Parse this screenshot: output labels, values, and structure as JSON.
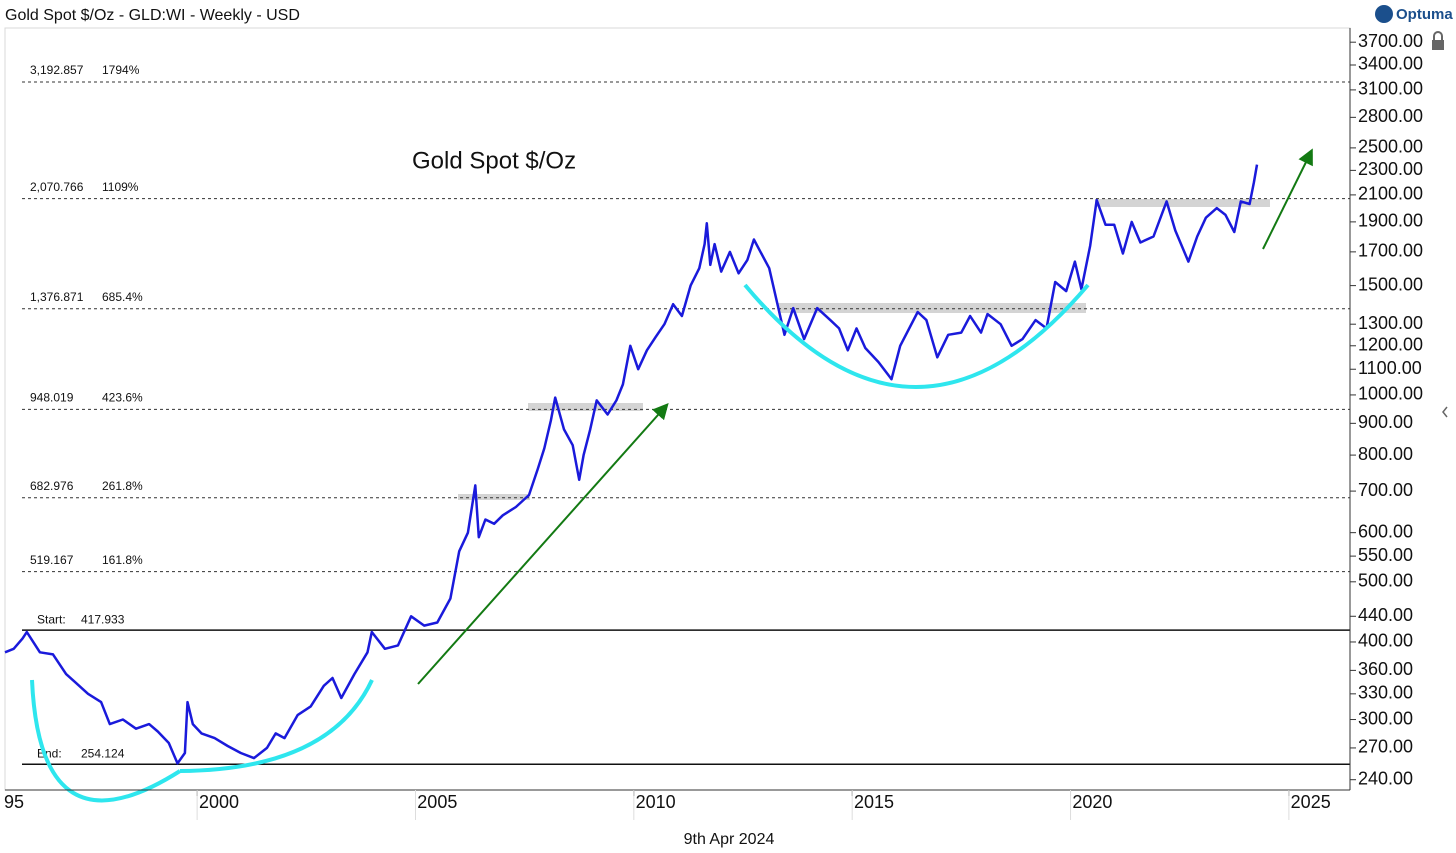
{
  "chart_data": {
    "type": "line",
    "title": "Gold Spot $/Oz - GLD:WI - Weekly - USD",
    "annotation": "Gold Spot $/Oz",
    "logo": "Optuma",
    "date_label": "9th Apr 2024",
    "log_scale": true,
    "xlim": [
      1995.6,
      2026.4
    ],
    "xticks": [
      {
        "value": 1995,
        "label": "95"
      },
      2000,
      2005,
      2010,
      2015,
      2020,
      2025
    ],
    "ylim": [
      231,
      3900
    ],
    "yticks": [
      {
        "value": 3700,
        "label": "3700.00"
      },
      {
        "value": 3400,
        "label": "3400.00"
      },
      {
        "value": 3100,
        "label": "3100.00"
      },
      {
        "value": 2800,
        "label": "2800.00"
      },
      {
        "value": 2500,
        "label": "2500.00"
      },
      {
        "value": 2300,
        "label": "2300.00"
      },
      {
        "value": 2100,
        "label": "2100.00"
      },
      {
        "value": 1900,
        "label": "1900.00"
      },
      {
        "value": 1700,
        "label": "1700.00"
      },
      {
        "value": 1500,
        "label": "1500.00"
      },
      {
        "value": 1300,
        "label": "1300.00"
      },
      {
        "value": 1200,
        "label": "1200.00"
      },
      {
        "value": 1100,
        "label": "1100.00"
      },
      {
        "value": 1000,
        "label": "1000.00"
      },
      {
        "value": 900,
        "label": "900.00"
      },
      {
        "value": 800,
        "label": "800.00"
      },
      {
        "value": 700,
        "label": "700.00"
      },
      {
        "value": 600,
        "label": "600.00"
      },
      {
        "value": 550,
        "label": "550.00"
      },
      {
        "value": 500,
        "label": "500.00"
      },
      {
        "value": 440,
        "label": "440.00"
      },
      {
        "value": 400,
        "label": "400.00"
      },
      {
        "value": 360,
        "label": "360.00"
      },
      {
        "value": 330,
        "label": "330.00"
      },
      {
        "value": 300,
        "label": "300.00"
      },
      {
        "value": 270,
        "label": "270.00"
      },
      {
        "value": 240,
        "label": "240.00"
      }
    ],
    "fib_levels": [
      {
        "value": 3192.857,
        "label": "3,192.857",
        "percent_label": "1794%"
      },
      {
        "value": 2070.766,
        "label": "2,070.766",
        "percent_label": "1109%"
      },
      {
        "value": 1376.871,
        "label": "1,376.871",
        "percent_label": "685.4%"
      },
      {
        "value": 948.019,
        "label": "948.019",
        "percent_label": "423.6%"
      },
      {
        "value": 682.976,
        "label": "682.976",
        "percent_label": "261.8%"
      },
      {
        "value": 519.167,
        "label": "519.167",
        "percent_label": "161.8%"
      }
    ],
    "range_levels": [
      {
        "name": "Start:",
        "value": 417.933
      },
      {
        "name": "End:",
        "value": 254.124
      }
    ],
    "series": [
      {
        "name": "Gold Spot $/Oz",
        "color": "#1a1adb",
        "x": [
          1995.6,
          1995.8,
          1996.0,
          1996.1,
          1996.4,
          1996.7,
          1997.0,
          1997.2,
          1997.5,
          1997.8,
          1998.0,
          1998.3,
          1998.6,
          1998.9,
          1999.1,
          1999.35,
          1999.55,
          1999.72,
          1999.78,
          1999.9,
          2000.1,
          2000.4,
          2000.7,
          2001.0,
          2001.3,
          2001.6,
          2001.8,
          2002.0,
          2002.3,
          2002.6,
          2002.9,
          2003.1,
          2003.3,
          2003.6,
          2003.9,
          2004.0,
          2004.3,
          2004.6,
          2004.9,
          2005.2,
          2005.5,
          2005.8,
          2006.0,
          2006.2,
          2006.37,
          2006.45,
          2006.6,
          2006.8,
          2007.0,
          2007.3,
          2007.6,
          2007.8,
          2007.95,
          2008.1,
          2008.2,
          2008.4,
          2008.6,
          2008.75,
          2008.85,
          2009.0,
          2009.15,
          2009.4,
          2009.6,
          2009.75,
          2009.92,
          2010.1,
          2010.3,
          2010.5,
          2010.7,
          2010.9,
          2011.1,
          2011.3,
          2011.5,
          2011.62,
          2011.67,
          2011.75,
          2011.85,
          2012.0,
          2012.2,
          2012.4,
          2012.6,
          2012.75,
          2012.9,
          2013.1,
          2013.3,
          2013.45,
          2013.65,
          2013.9,
          2014.2,
          2014.5,
          2014.7,
          2014.9,
          2015.1,
          2015.3,
          2015.6,
          2015.9,
          2016.1,
          2016.5,
          2016.7,
          2016.95,
          2017.2,
          2017.5,
          2017.7,
          2017.95,
          2018.1,
          2018.4,
          2018.65,
          2018.9,
          2019.2,
          2019.45,
          2019.65,
          2019.9,
          2020.1,
          2020.25,
          2020.45,
          2020.6,
          2020.8,
          2021.0,
          2021.2,
          2021.4,
          2021.6,
          2021.9,
          2022.2,
          2022.4,
          2022.7,
          2022.9,
          2023.1,
          2023.35,
          2023.55,
          2023.75,
          2023.9,
          2024.1,
          2024.2,
          2024.27
        ],
        "values": [
          385,
          390,
          405,
          415,
          385,
          382,
          355,
          345,
          330,
          320,
          295,
          300,
          290,
          295,
          287,
          275,
          255,
          265,
          320,
          295,
          285,
          280,
          272,
          265,
          260,
          270,
          285,
          280,
          305,
          315,
          340,
          350,
          325,
          355,
          385,
          415,
          390,
          395,
          440,
          425,
          430,
          470,
          560,
          600,
          715,
          590,
          630,
          620,
          640,
          660,
          690,
          760,
          820,
          910,
          990,
          880,
          830,
          730,
          800,
          880,
          980,
          930,
          980,
          1040,
          1200,
          1100,
          1180,
          1240,
          1300,
          1400,
          1340,
          1500,
          1600,
          1750,
          1890,
          1620,
          1750,
          1580,
          1700,
          1570,
          1650,
          1780,
          1700,
          1600,
          1390,
          1250,
          1380,
          1230,
          1380,
          1320,
          1280,
          1180,
          1280,
          1190,
          1130,
          1060,
          1200,
          1360,
          1320,
          1150,
          1250,
          1260,
          1340,
          1260,
          1350,
          1300,
          1200,
          1230,
          1320,
          1280,
          1520,
          1470,
          1640,
          1480,
          1740,
          2060,
          1880,
          1880,
          1690,
          1900,
          1760,
          1800,
          2050,
          1840,
          1640,
          1800,
          1930,
          2000,
          1950,
          1830,
          2050,
          2030,
          2200,
          2350
        ]
      }
    ]
  }
}
